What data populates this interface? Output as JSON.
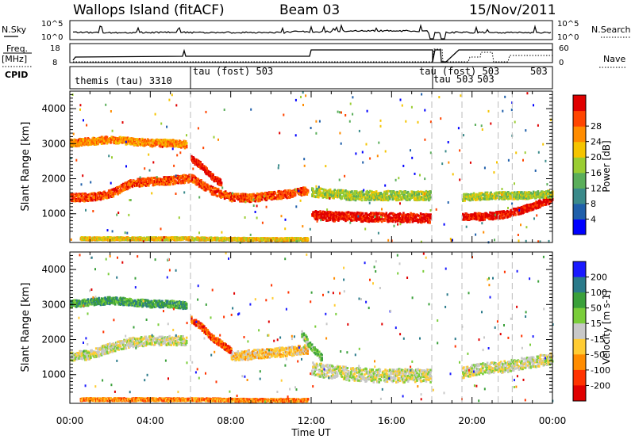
{
  "header": {
    "station": "Wallops Island (fitACF)",
    "beam": "Beam 03",
    "date": "15/Nov/2011"
  },
  "strip_labels": {
    "nsky": "N.Sky",
    "nsky_ticks": [
      "10^5",
      "10^0"
    ],
    "nsearch": "N.Search",
    "nsearch_ticks": [
      "10^5",
      "10^0"
    ],
    "freq_line1": "Freq.",
    "freq_line2": "[MHz]",
    "freq_ticks": [
      "18",
      "8"
    ],
    "nave": "Nave",
    "nave_ticks": [
      "60",
      "0"
    ],
    "cpid": "CPID"
  },
  "cpid_segments": [
    {
      "label": "themis (tau) 3310",
      "start_hour": 0.0
    },
    {
      "label": "tau (fost) 503",
      "start_hour": 6.0
    },
    {
      "label": "tau (fost) 503",
      "start_hour": 18.0
    },
    {
      "label": "tau 503",
      "start_hour": 18.0
    },
    {
      "label": "503",
      "start_hour": 19.5
    },
    {
      "label": "503",
      "start_hour": 21.3
    }
  ],
  "axes": {
    "ylabel": "Slant Range [km]",
    "xlabel": "Time UT",
    "time_ticks": [
      "00:00",
      "04:00",
      "08:00",
      "12:00",
      "16:00",
      "20:00",
      "00:00"
    ],
    "range_ticks": [
      "1000",
      "2000",
      "3000",
      "4000"
    ]
  },
  "chart_data": [
    {
      "type": "heatmap",
      "name": "power",
      "colorbar_label": "Power [dB]",
      "colorbar_ticks": [
        "4",
        "8",
        "12",
        "16",
        "20",
        "24",
        "28"
      ],
      "colors": [
        "#0000ff",
        "#1f5faa",
        "#3a8a8a",
        "#5aae5a",
        "#9acd32",
        "#f5c400",
        "#ff8c00",
        "#ff4500",
        "#e00000"
      ],
      "x_range_hours": [
        0,
        24
      ],
      "y_range_km": [
        180,
        4500
      ],
      "bands": [
        {
          "t": [
            0,
            1,
            2,
            3,
            4,
            5,
            5.8
          ],
          "r": [
            3050,
            3100,
            3150,
            3100,
            3050,
            3050,
            3000
          ],
          "w": 200,
          "level": 6
        },
        {
          "t": [
            0,
            1,
            2,
            3,
            4,
            5,
            6,
            7,
            8,
            9,
            10,
            11,
            11.8
          ],
          "r": [
            1500,
            1500,
            1600,
            1900,
            1950,
            1980,
            2050,
            1700,
            1500,
            1480,
            1550,
            1600,
            1700
          ],
          "w": 220,
          "level": 7
        },
        {
          "t": [
            6,
            6.5,
            7,
            7.5
          ],
          "r": [
            2600,
            2400,
            2100,
            1900
          ],
          "w": 180,
          "level": 8
        },
        {
          "t": [
            12,
            13,
            14,
            15,
            16,
            17,
            17.9
          ],
          "r": [
            1000,
            950,
            950,
            930,
            920,
            920,
            900
          ],
          "w": 260,
          "level": 8
        },
        {
          "t": [
            12,
            13,
            14,
            15,
            16,
            17,
            17.9
          ],
          "r": [
            1650,
            1600,
            1550,
            1550,
            1550,
            1550,
            1550
          ],
          "w": 260,
          "level": 4
        },
        {
          "t": [
            19.5,
            20.5,
            21.5,
            22.5,
            23.5,
            24
          ],
          "r": [
            950,
            950,
            1000,
            1150,
            1350,
            1450
          ],
          "w": 200,
          "level": 8
        },
        {
          "t": [
            19.5,
            21,
            22.5,
            24
          ],
          "r": [
            1500,
            1550,
            1550,
            1600
          ],
          "w": 200,
          "level": 4
        },
        {
          "t": [
            0.5,
            3,
            6,
            9,
            11.8
          ],
          "r": [
            320,
            320,
            320,
            300,
            300
          ],
          "w": 80,
          "level": 5
        }
      ]
    },
    {
      "type": "heatmap",
      "name": "velocity",
      "colorbar_label": "Velocity [m s-1]",
      "colorbar_ticks": [
        "200",
        "100",
        "50",
        "15",
        "-15",
        "-50",
        "-100",
        "-200"
      ],
      "colors": [
        "#1a1aff",
        "#2a7a8a",
        "#3aa03a",
        "#7acd3a",
        "#c8c8c8",
        "#ffcc33",
        "#ff8c00",
        "#ff3300",
        "#e00000"
      ],
      "x_range_hours": [
        0,
        24
      ],
      "y_range_km": [
        180,
        4500
      ],
      "bands": [
        {
          "t": [
            0,
            1,
            2,
            3,
            4,
            5,
            5.8
          ],
          "r": [
            3050,
            3100,
            3150,
            3100,
            3050,
            3050,
            3000
          ],
          "w": 200,
          "level": 2
        },
        {
          "t": [
            0,
            1,
            2,
            3,
            4,
            5,
            5.8
          ],
          "r": [
            1550,
            1600,
            1800,
            1950,
            2000,
            2000,
            2000
          ],
          "w": 260,
          "level": 4
        },
        {
          "t": [
            6,
            6.5,
            7,
            7.5,
            8
          ],
          "r": [
            2600,
            2400,
            2100,
            1900,
            1700
          ],
          "w": 180,
          "level": 7
        },
        {
          "t": [
            8,
            9,
            10,
            11,
            11.8
          ],
          "r": [
            1550,
            1600,
            1650,
            1700,
            1750
          ],
          "w": 260,
          "level": 5
        },
        {
          "t": [
            11.5,
            12,
            12.5
          ],
          "r": [
            2200,
            1800,
            1500
          ],
          "w": 200,
          "level": 3
        },
        {
          "t": [
            12,
            13,
            14,
            15,
            16,
            17,
            17.9
          ],
          "r": [
            1200,
            1100,
            1050,
            1000,
            1000,
            1000,
            1000
          ],
          "w": 380,
          "level": 4
        },
        {
          "t": [
            19.5,
            20.5,
            21.5,
            22.5,
            23.5,
            24
          ],
          "r": [
            1100,
            1200,
            1250,
            1350,
            1450,
            1500
          ],
          "w": 320,
          "level": 4
        },
        {
          "t": [
            0.5,
            3,
            6,
            9,
            11.8
          ],
          "r": [
            320,
            320,
            320,
            300,
            300
          ],
          "w": 80,
          "level": 6
        }
      ]
    }
  ]
}
